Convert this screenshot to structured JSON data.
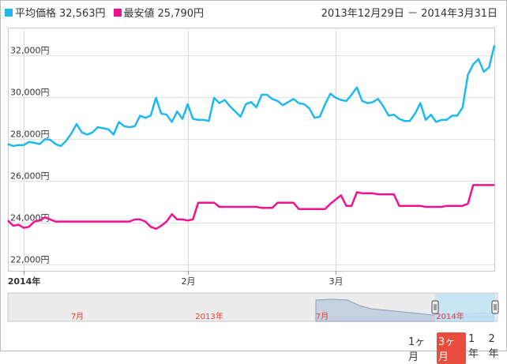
{
  "legend": {
    "avg": {
      "label": "平均価格",
      "value": "32,563円",
      "color": "#1eb8f2"
    },
    "min": {
      "label": "最安値",
      "value": "25,790円",
      "color": "#ee1290"
    }
  },
  "date_range": "2013年12月29日 － 2014年3月31日",
  "range_buttons": [
    {
      "label": "1ヶ月",
      "selected": false
    },
    {
      "label": "3ヶ月",
      "selected": true
    },
    {
      "label": "1年",
      "selected": false
    },
    {
      "label": "2年",
      "selected": false
    }
  ],
  "navigator": {
    "labels": [
      "7月",
      "2013年",
      "7月",
      "2014年"
    ]
  },
  "chart_data": {
    "type": "line",
    "x_start": "2013-12-29",
    "x_end": "2014-03-31",
    "x_tick_labels": [
      {
        "date": "2014-01-01",
        "label": "2014年",
        "bold": true
      },
      {
        "date": "2014-02-01",
        "label": "2月"
      },
      {
        "date": "2014-03-01",
        "label": "3月"
      }
    ],
    "y_ticks": [
      {
        "value": 22000,
        "label": "22,000円"
      },
      {
        "value": 24000,
        "label": "24,000円"
      },
      {
        "value": 26000,
        "label": "26,000円"
      },
      {
        "value": 28000,
        "label": "28,000円"
      },
      {
        "value": 30000,
        "label": "30,000円"
      },
      {
        "value": 32000,
        "label": "32,000円"
      }
    ],
    "ylim": [
      21700,
      33300
    ],
    "series": [
      {
        "name": "平均価格",
        "color": "#1eb8f2",
        "points": [
          [
            "2013-12-29",
            27750
          ],
          [
            "2013-12-30",
            27650
          ],
          [
            "2013-12-31",
            27700
          ],
          [
            "2014-01-01",
            27700
          ],
          [
            "2014-01-02",
            27850
          ],
          [
            "2014-01-03",
            27800
          ],
          [
            "2014-01-04",
            27750
          ],
          [
            "2014-01-05",
            27980
          ],
          [
            "2014-01-06",
            27950
          ],
          [
            "2014-01-07",
            27750
          ],
          [
            "2014-01-08",
            27650
          ],
          [
            "2014-01-09",
            27900
          ],
          [
            "2014-01-10",
            28250
          ],
          [
            "2014-01-11",
            28700
          ],
          [
            "2014-01-12",
            28300
          ],
          [
            "2014-01-13",
            28200
          ],
          [
            "2014-01-14",
            28300
          ],
          [
            "2014-01-15",
            28550
          ],
          [
            "2014-01-16",
            28500
          ],
          [
            "2014-01-17",
            28450
          ],
          [
            "2014-01-18",
            28200
          ],
          [
            "2014-01-19",
            28800
          ],
          [
            "2014-01-20",
            28600
          ],
          [
            "2014-01-21",
            28550
          ],
          [
            "2014-01-22",
            28600
          ],
          [
            "2014-01-23",
            29100
          ],
          [
            "2014-01-24",
            29000
          ],
          [
            "2014-01-25",
            29100
          ],
          [
            "2014-01-26",
            29950
          ],
          [
            "2014-01-27",
            29200
          ],
          [
            "2014-01-28",
            29150
          ],
          [
            "2014-01-29",
            28800
          ],
          [
            "2014-01-30",
            29300
          ],
          [
            "2014-01-31",
            28950
          ],
          [
            "2014-02-01",
            29650
          ],
          [
            "2014-02-02",
            28950
          ],
          [
            "2014-02-03",
            28900
          ],
          [
            "2014-02-04",
            28900
          ],
          [
            "2014-02-05",
            28850
          ],
          [
            "2014-02-06",
            29950
          ],
          [
            "2014-02-07",
            29700
          ],
          [
            "2014-02-08",
            29850
          ],
          [
            "2014-02-09",
            29550
          ],
          [
            "2014-02-10",
            29300
          ],
          [
            "2014-02-11",
            29050
          ],
          [
            "2014-02-12",
            29650
          ],
          [
            "2014-02-13",
            29750
          ],
          [
            "2014-02-14",
            29500
          ],
          [
            "2014-02-15",
            30100
          ],
          [
            "2014-02-16",
            30100
          ],
          [
            "2014-02-17",
            29900
          ],
          [
            "2014-02-18",
            29800
          ],
          [
            "2014-02-19",
            29600
          ],
          [
            "2014-02-20",
            29750
          ],
          [
            "2014-02-21",
            29900
          ],
          [
            "2014-02-22",
            29700
          ],
          [
            "2014-02-23",
            29650
          ],
          [
            "2014-02-24",
            29450
          ],
          [
            "2014-02-25",
            29000
          ],
          [
            "2014-02-26",
            29050
          ],
          [
            "2014-02-27",
            29650
          ],
          [
            "2014-02-28",
            30150
          ],
          [
            "2014-03-01",
            29950
          ],
          [
            "2014-03-02",
            29850
          ],
          [
            "2014-03-03",
            29800
          ],
          [
            "2014-03-04",
            30100
          ],
          [
            "2014-03-05",
            30450
          ],
          [
            "2014-03-06",
            29800
          ],
          [
            "2014-03-07",
            29700
          ],
          [
            "2014-03-08",
            29750
          ],
          [
            "2014-03-09",
            29900
          ],
          [
            "2014-03-10",
            29550
          ],
          [
            "2014-03-11",
            29100
          ],
          [
            "2014-03-12",
            29150
          ],
          [
            "2014-03-13",
            28950
          ],
          [
            "2014-03-14",
            28850
          ],
          [
            "2014-03-15",
            28850
          ],
          [
            "2014-03-16",
            29200
          ],
          [
            "2014-03-17",
            29700
          ],
          [
            "2014-03-18",
            28900
          ],
          [
            "2014-03-19",
            29150
          ],
          [
            "2014-03-20",
            28800
          ],
          [
            "2014-03-21",
            28900
          ],
          [
            "2014-03-22",
            28900
          ],
          [
            "2014-03-23",
            29100
          ],
          [
            "2014-03-24",
            29100
          ],
          [
            "2014-03-25",
            29500
          ],
          [
            "2014-03-26",
            31050
          ],
          [
            "2014-03-27",
            31550
          ],
          [
            "2014-03-28",
            31800
          ],
          [
            "2014-03-29",
            31200
          ],
          [
            "2014-03-30",
            31400
          ],
          [
            "2014-03-31",
            32450
          ]
        ]
      },
      {
        "name": "最安値",
        "color": "#ee1290",
        "points": [
          [
            "2013-12-29",
            24100
          ],
          [
            "2013-12-30",
            23850
          ],
          [
            "2013-12-31",
            23900
          ],
          [
            "2014-01-01",
            23750
          ],
          [
            "2014-01-02",
            23800
          ],
          [
            "2014-01-03",
            24050
          ],
          [
            "2014-01-04",
            24100
          ],
          [
            "2014-01-05",
            24250
          ],
          [
            "2014-01-06",
            24150
          ],
          [
            "2014-01-07",
            24050
          ],
          [
            "2014-01-14",
            24050
          ],
          [
            "2014-01-21",
            24050
          ],
          [
            "2014-01-22",
            24150
          ],
          [
            "2014-01-23",
            24150
          ],
          [
            "2014-01-24",
            24050
          ],
          [
            "2014-01-25",
            23800
          ],
          [
            "2014-01-26",
            23700
          ],
          [
            "2014-01-27",
            23850
          ],
          [
            "2014-01-28",
            24050
          ],
          [
            "2014-01-29",
            24400
          ],
          [
            "2014-01-30",
            24150
          ],
          [
            "2014-01-31",
            24150
          ],
          [
            "2014-02-01",
            24100
          ],
          [
            "2014-02-02",
            24150
          ],
          [
            "2014-02-03",
            24950
          ],
          [
            "2014-02-05",
            24950
          ],
          [
            "2014-02-06",
            24950
          ],
          [
            "2014-02-07",
            24750
          ],
          [
            "2014-02-10",
            24750
          ],
          [
            "2014-02-14",
            24750
          ],
          [
            "2014-02-15",
            24700
          ],
          [
            "2014-02-17",
            24700
          ],
          [
            "2014-02-18",
            24950
          ],
          [
            "2014-02-21",
            24950
          ],
          [
            "2014-02-22",
            24650
          ],
          [
            "2014-02-24",
            24650
          ],
          [
            "2014-02-25",
            24650
          ],
          [
            "2014-02-27",
            24650
          ],
          [
            "2014-02-28",
            24900
          ],
          [
            "2014-03-01",
            25100
          ],
          [
            "2014-03-02",
            25300
          ],
          [
            "2014-03-03",
            24800
          ],
          [
            "2014-03-04",
            24800
          ],
          [
            "2014-03-05",
            25450
          ],
          [
            "2014-03-06",
            25400
          ],
          [
            "2014-03-08",
            25400
          ],
          [
            "2014-03-09",
            25350
          ],
          [
            "2014-03-12",
            25350
          ],
          [
            "2014-03-13",
            24800
          ],
          [
            "2014-03-15",
            24800
          ],
          [
            "2014-03-17",
            24800
          ],
          [
            "2014-03-18",
            24750
          ],
          [
            "2014-03-21",
            24750
          ],
          [
            "2014-03-22",
            24800
          ],
          [
            "2014-03-24",
            24800
          ],
          [
            "2014-03-25",
            24800
          ],
          [
            "2014-03-26",
            24900
          ],
          [
            "2014-03-27",
            25790
          ],
          [
            "2014-03-31",
            25790
          ]
        ]
      }
    ]
  }
}
